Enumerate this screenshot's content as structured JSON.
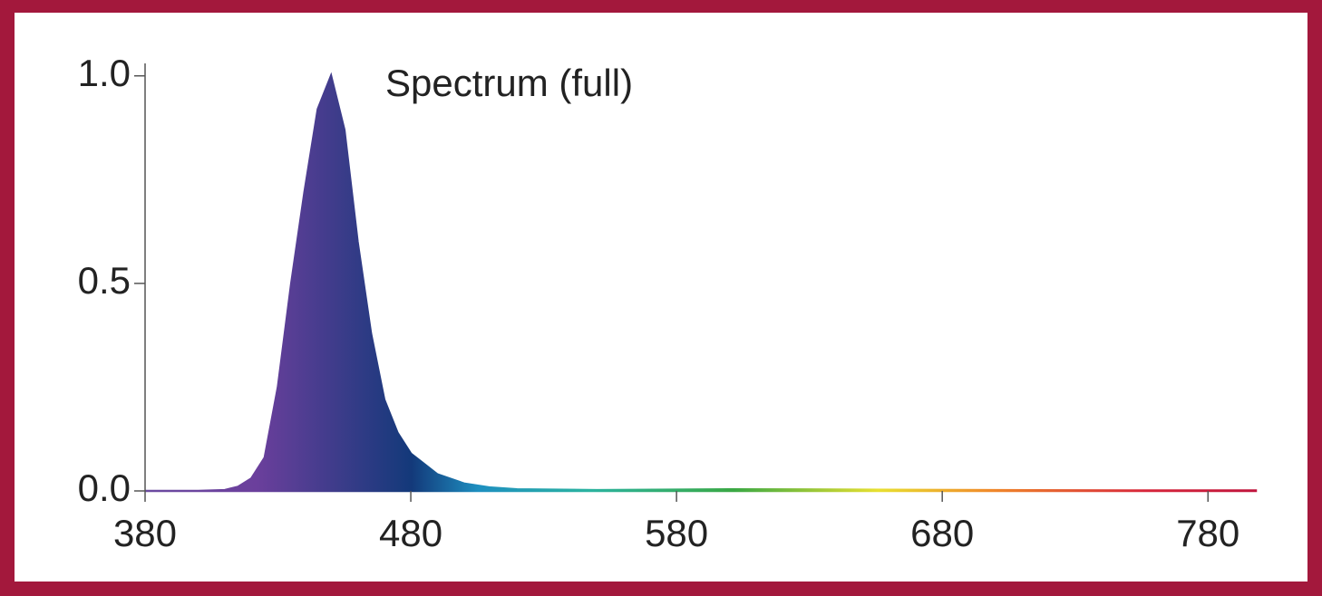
{
  "chart_data": {
    "type": "area",
    "annotation": "Spectrum (full)",
    "x": [
      380,
      400,
      410,
      415,
      420,
      425,
      430,
      435,
      440,
      445,
      450,
      455,
      460,
      465,
      470,
      475,
      480,
      490,
      500,
      510,
      520,
      550,
      600,
      650,
      700,
      750,
      798
    ],
    "values": [
      0,
      0,
      0.002,
      0.01,
      0.03,
      0.08,
      0.25,
      0.5,
      0.72,
      0.92,
      1.0,
      0.87,
      0.6,
      0.38,
      0.22,
      0.14,
      0.09,
      0.04,
      0.018,
      0.008,
      0.004,
      0.002,
      0.004,
      0.003,
      0.002,
      0.001,
      0.001
    ],
    "xlim": [
      380,
      798
    ],
    "xticks": [
      380,
      480,
      580,
      680,
      780
    ],
    "ylim": [
      0,
      1.03
    ],
    "yticks": [
      {
        "value": 0,
        "label": "0.0"
      },
      {
        "value": 0.5,
        "label": "0.5"
      },
      {
        "value": 1.0,
        "label": "1.0"
      }
    ],
    "grid": false
  }
}
